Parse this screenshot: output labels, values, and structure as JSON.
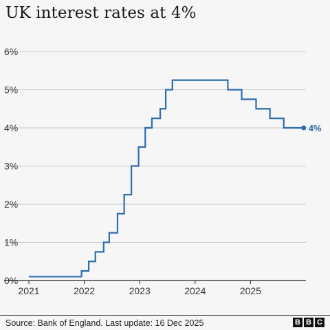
{
  "title": "UK interest rates at 4%",
  "source": "Source: Bank of England. Last update: 16 Dec 2025",
  "logo_letters": [
    "B",
    "B",
    "C"
  ],
  "colors": {
    "line": "#2b6dae",
    "grid": "#c8c8c8",
    "axis": "#222222",
    "background": "#f6f6f6"
  },
  "chart_data": {
    "type": "line",
    "step": true,
    "title": "UK interest rates at 4%",
    "ylabel": "",
    "xlabel": "",
    "y_ticks": [
      "0%",
      "1%",
      "2%",
      "3%",
      "4%",
      "5%",
      "6%"
    ],
    "x_ticks": [
      "2021",
      "2022",
      "2023",
      "2024",
      "2025"
    ],
    "ylim": [
      0,
      6
    ],
    "xlim": [
      2021.0,
      2026.0
    ],
    "grid": true,
    "end_label": "4%",
    "series": [
      {
        "x": [
          2021.0,
          2021.95,
          2022.08,
          2022.2,
          2022.35,
          2022.45,
          2022.6,
          2022.72,
          2022.85,
          2022.98,
          2023.1,
          2023.22,
          2023.37,
          2023.47,
          2023.59,
          2024.59,
          2024.84,
          2025.1,
          2025.35,
          2025.6,
          2025.96
        ],
        "y": [
          0.1,
          0.25,
          0.5,
          0.75,
          1.0,
          1.25,
          1.75,
          2.25,
          3.0,
          3.5,
          4.0,
          4.25,
          4.5,
          5.0,
          5.25,
          5.0,
          4.75,
          4.5,
          4.25,
          4.0,
          4.0
        ]
      }
    ]
  }
}
